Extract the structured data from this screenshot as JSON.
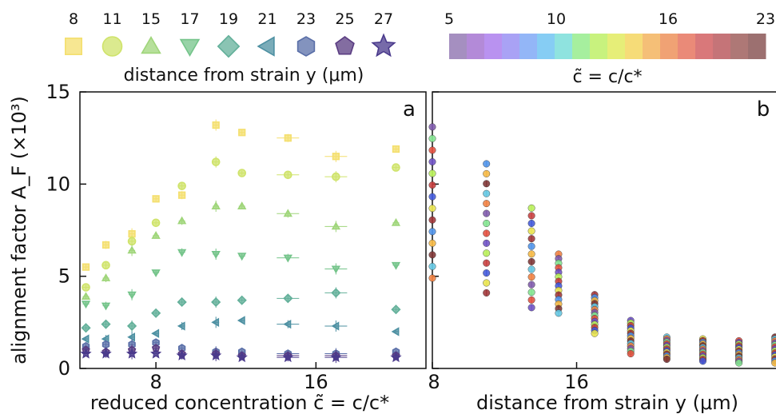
{
  "legend": {
    "distance_values": [
      "8",
      "11",
      "15",
      "17",
      "19",
      "21",
      "23",
      "25",
      "27"
    ],
    "distance_title": "distance from strain y (μm)",
    "colorbar_ticks": [
      "5",
      "10",
      "16",
      "23"
    ],
    "colorbar_title": "c̃ = c/c*"
  },
  "chart_data": [
    {
      "panel": "a",
      "type": "scatter",
      "xlabel": "reduced concentration c̃ = c/c*",
      "ylabel": "alignment factor A_F (×10³)",
      "xlim": [
        4.2,
        21.5
      ],
      "ylim": [
        0,
        15
      ],
      "xticks": [
        8,
        16
      ],
      "yticks": [
        0,
        5,
        10,
        15
      ],
      "grid": false,
      "x": [
        4.5,
        5.5,
        6.8,
        8.0,
        9.3,
        11.0,
        12.3,
        14.6,
        17.0,
        20.0
      ],
      "series": [
        {
          "name": "8",
          "marker": "square",
          "color": "#f4df6e",
          "values": [
            5.5,
            6.7,
            7.3,
            9.2,
            9.4,
            13.2,
            12.8,
            12.5,
            11.5,
            11.9
          ]
        },
        {
          "name": "11",
          "marker": "circle",
          "color": "#cfe36a",
          "values": [
            4.4,
            5.6,
            6.9,
            7.9,
            9.9,
            11.2,
            10.6,
            10.5,
            10.4,
            10.9
          ]
        },
        {
          "name": "15",
          "marker": "triangle-up",
          "color": "#9fd57a",
          "values": [
            3.9,
            4.9,
            6.4,
            7.2,
            8.0,
            8.8,
            8.8,
            8.4,
            7.7,
            7.9
          ]
        },
        {
          "name": "17",
          "marker": "triangle-down",
          "color": "#74c48a",
          "values": [
            3.5,
            3.4,
            4.0,
            5.2,
            6.3,
            6.2,
            6.1,
            6.0,
            5.4,
            5.6
          ]
        },
        {
          "name": "19",
          "marker": "diamond",
          "color": "#63b09a",
          "values": [
            2.2,
            2.4,
            2.3,
            3.0,
            3.6,
            3.6,
            3.7,
            3.8,
            4.1,
            3.2
          ]
        },
        {
          "name": "21",
          "marker": "triangle-left",
          "color": "#4d90a2",
          "values": [
            1.6,
            1.6,
            1.7,
            1.9,
            2.3,
            2.5,
            2.6,
            2.4,
            2.3,
            2.0
          ]
        },
        {
          "name": "23",
          "marker": "hexagon",
          "color": "#5a6fa8",
          "values": [
            1.2,
            1.3,
            1.3,
            1.4,
            1.1,
            0.9,
            0.9,
            0.8,
            0.8,
            0.9
          ]
        },
        {
          "name": "25",
          "marker": "pentagon",
          "color": "#5a3c82",
          "values": [
            1.0,
            0.9,
            1.0,
            1.1,
            0.8,
            0.8,
            0.7,
            0.7,
            0.7,
            0.7
          ]
        },
        {
          "name": "27",
          "marker": "star",
          "color": "#4a3a8c",
          "values": [
            0.8,
            0.8,
            0.8,
            0.8,
            0.7,
            0.7,
            0.6,
            0.6,
            0.6,
            0.6
          ]
        }
      ]
    },
    {
      "panel": "b",
      "type": "scatter",
      "xlabel": "distance from strain y (μm)",
      "xlim": [
        8,
        27.5
      ],
      "ylim": [
        0,
        15
      ],
      "xticks": [
        8,
        16
      ],
      "grid": false,
      "x": [
        8,
        11,
        13.5,
        15,
        17,
        19,
        21,
        23,
        25,
        27
      ],
      "color_by": "c̃ (5 to 23)",
      "points": [
        {
          "x": 8,
          "ymin": 4.9,
          "ymax": 13.1
        },
        {
          "x": 11,
          "ymin": 4.1,
          "ymax": 11.1
        },
        {
          "x": 13.5,
          "ymin": 3.3,
          "ymax": 8.7
        },
        {
          "x": 15,
          "ymin": 3.0,
          "ymax": 6.2
        },
        {
          "x": 17,
          "ymin": 1.9,
          "ymax": 4.0
        },
        {
          "x": 19,
          "ymin": 0.8,
          "ymax": 2.6
        },
        {
          "x": 21,
          "ymin": 0.5,
          "ymax": 1.7
        },
        {
          "x": 23,
          "ymin": 0.4,
          "ymax": 1.6
        },
        {
          "x": 25,
          "ymin": 0.3,
          "ymax": 1.5
        },
        {
          "x": 27,
          "ymin": 0.3,
          "ymax": 1.7
        }
      ]
    }
  ]
}
